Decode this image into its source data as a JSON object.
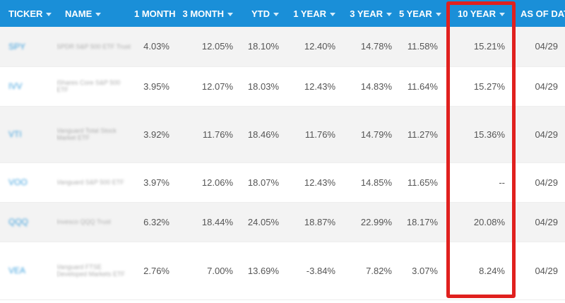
{
  "columns": [
    {
      "key": "ticker",
      "label": "TICKER"
    },
    {
      "key": "name",
      "label": "NAME"
    },
    {
      "key": "m1",
      "label": "1 MONTH"
    },
    {
      "key": "m3",
      "label": "3 MONTH"
    },
    {
      "key": "ytd",
      "label": "YTD"
    },
    {
      "key": "y1",
      "label": "1 YEAR"
    },
    {
      "key": "y3",
      "label": "3 YEAR"
    },
    {
      "key": "y5",
      "label": "5 YEAR"
    },
    {
      "key": "y10",
      "label": "10 YEAR"
    },
    {
      "key": "asof",
      "label": "AS OF DAT"
    }
  ],
  "sort_icon": "caret-down-icon",
  "rows": [
    {
      "ticker": "SPY",
      "name": "SPDR S&P 500 ETF Trust",
      "m1": "4.03%",
      "m3": "12.05%",
      "ytd": "18.10%",
      "y1": "12.40%",
      "y3": "14.78%",
      "y5": "11.58%",
      "y10": "15.21%",
      "asof": "04/29"
    },
    {
      "ticker": "IVV",
      "name": "iShares Core S&P 500 ETF",
      "m1": "3.95%",
      "m3": "12.07%",
      "ytd": "18.03%",
      "y1": "12.43%",
      "y3": "14.83%",
      "y5": "11.64%",
      "y10": "15.27%",
      "asof": "04/29"
    },
    {
      "ticker": "VTI",
      "name": "Vanguard Total Stock Market ETF",
      "m1": "3.92%",
      "m3": "11.76%",
      "ytd": "18.46%",
      "y1": "11.76%",
      "y3": "14.79%",
      "y5": "11.27%",
      "y10": "15.36%",
      "asof": "04/29"
    },
    {
      "ticker": "VOO",
      "name": "Vanguard S&P 500 ETF",
      "m1": "3.97%",
      "m3": "12.06%",
      "ytd": "18.07%",
      "y1": "12.43%",
      "y3": "14.85%",
      "y5": "11.65%",
      "y10": "--",
      "asof": "04/29"
    },
    {
      "ticker": "QQQ",
      "name": "Invesco QQQ Trust",
      "m1": "6.32%",
      "m3": "18.44%",
      "ytd": "24.05%",
      "y1": "18.87%",
      "y3": "22.99%",
      "y5": "18.17%",
      "y10": "20.08%",
      "asof": "04/29"
    },
    {
      "ticker": "VEA",
      "name": "Vanguard FTSE Developed Markets ETF",
      "m1": "2.76%",
      "m3": "7.00%",
      "ytd": "13.69%",
      "y1": "-3.84%",
      "y3": "7.82%",
      "y5": "3.07%",
      "y10": "8.24%",
      "asof": "04/29"
    }
  ],
  "colors": {
    "header_bg": "#1a8fd8",
    "ticker_link": "#1a8fd8",
    "highlight_border": "#e0201e",
    "row_stripe": "#f3f3f3"
  }
}
